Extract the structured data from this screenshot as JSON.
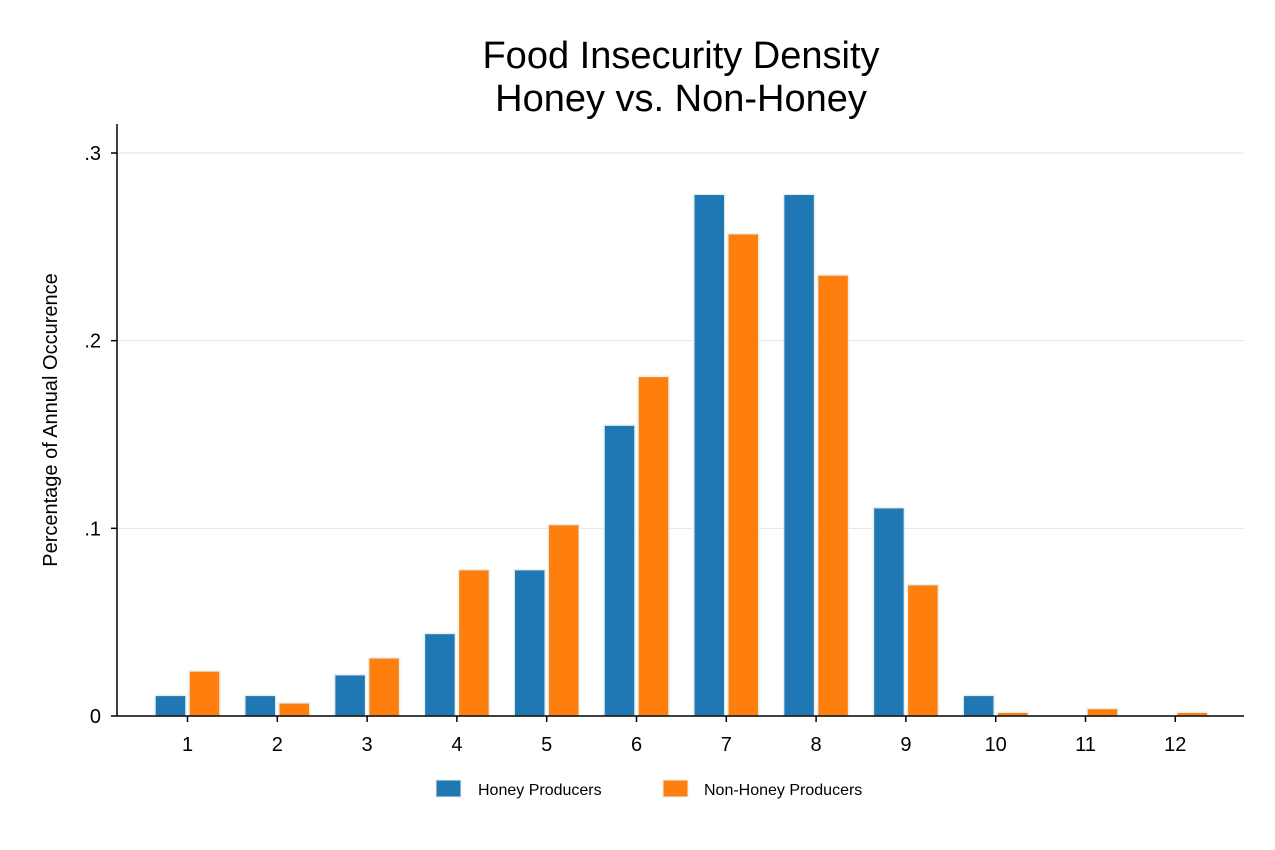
{
  "chart_data": {
    "type": "bar",
    "title": [
      "Food Insecurity Density",
      "Honey vs. Non-Honey"
    ],
    "xlabel": "",
    "ylabel": "Percentage of Annual Occurence",
    "categories": [
      "1",
      "2",
      "3",
      "4",
      "5",
      "6",
      "7",
      "8",
      "9",
      "10",
      "11",
      "12"
    ],
    "ylim": [
      0,
      0.3
    ],
    "yticks": [
      0,
      0.1,
      0.2,
      0.3
    ],
    "ytick_labels": [
      "0",
      ".1",
      ".2",
      ".3"
    ],
    "grid": true,
    "legend_position": "bottom",
    "series": [
      {
        "name": "Honey Producers",
        "color": "#1f77b4",
        "values": [
          0.011,
          0.011,
          0.022,
          0.044,
          0.078,
          0.155,
          0.278,
          0.278,
          0.111,
          0.011,
          0,
          0
        ]
      },
      {
        "name": "Non-Honey Producers",
        "color": "#ff7f0e",
        "values": [
          0.024,
          0.007,
          0.031,
          0.078,
          0.102,
          0.181,
          0.257,
          0.235,
          0.07,
          0.002,
          0.004,
          0.002
        ]
      }
    ]
  }
}
